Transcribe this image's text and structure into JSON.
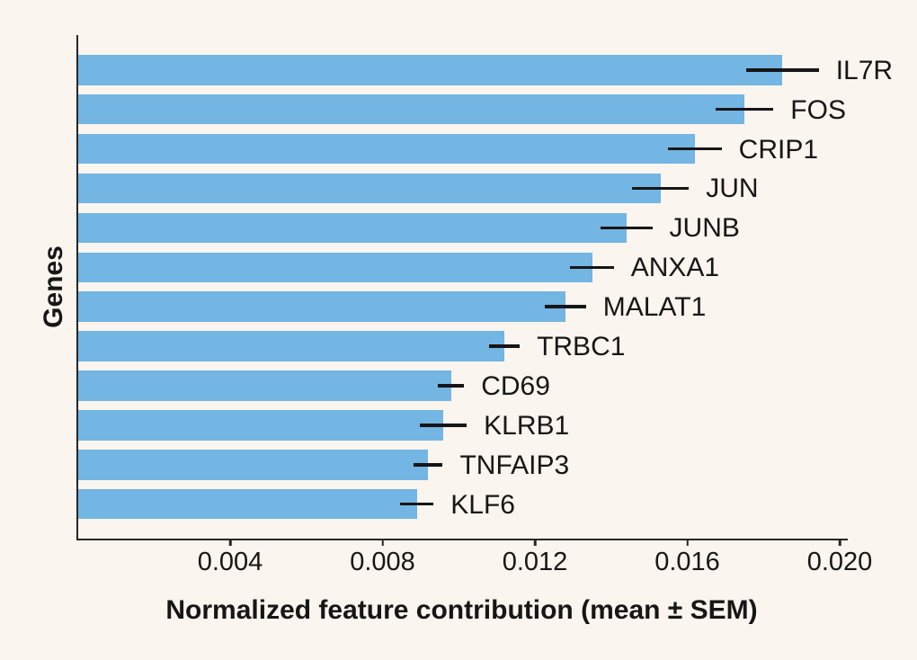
{
  "figure": {
    "background_color": "#faf5ee",
    "bar_color": "#73b5e3",
    "axis_color": "#262626",
    "text_color": "#161616"
  },
  "chart_data": {
    "type": "bar",
    "orientation": "horizontal",
    "title": "",
    "xlabel": "Normalized feature contribution (mean ± SEM)",
    "ylabel": "Genes",
    "xlim": [
      0,
      0.0202
    ],
    "grid": false,
    "legend": "none",
    "error_bars": "horizontal, ± SEM, centered on bar end",
    "bar_label_position": "right of error bar",
    "x_ticks": [
      0.004,
      0.008,
      0.012,
      0.016,
      0.02
    ],
    "x_tick_labels": [
      "0.004",
      "0.008",
      "0.012",
      "0.016",
      "0.020"
    ],
    "categories": [
      "IL7R",
      "FOS",
      "CRIP1",
      "JUN",
      "JUNB",
      "ANXA1",
      "MALAT1",
      "TRBC1",
      "CD69",
      "KLRB1",
      "TNFAIP3",
      "KLF6"
    ],
    "values": [
      0.0185,
      0.0175,
      0.0162,
      0.0153,
      0.0144,
      0.0135,
      0.0128,
      0.0112,
      0.0098,
      0.0096,
      0.0092,
      0.0089
    ],
    "sem": [
      0.00095,
      0.00076,
      0.0007,
      0.00074,
      0.00068,
      0.00057,
      0.00054,
      0.0004,
      0.00034,
      0.00061,
      0.00038,
      0.00044
    ]
  }
}
